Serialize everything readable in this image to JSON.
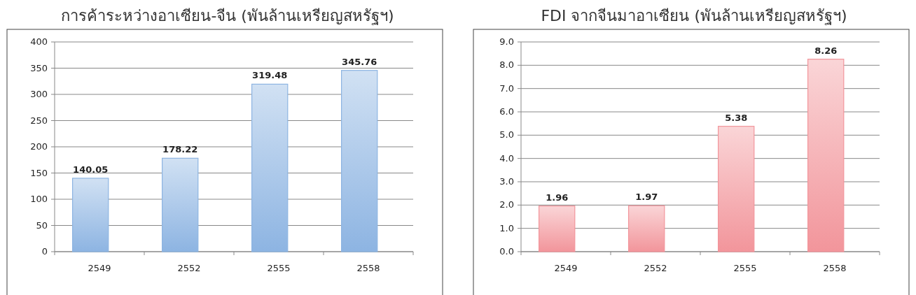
{
  "chart_data": [
    {
      "type": "bar",
      "title": "การค้าระหว่างอาเซียน-จีน (พันล้านเหรียญสหรัฐฯ)",
      "categories": [
        "2549",
        "2552",
        "2555",
        "2558"
      ],
      "values": [
        140.05,
        178.22,
        319.48,
        345.76
      ],
      "color": "#8db4e2",
      "ylim": [
        0,
        400
      ],
      "yticks": [
        0,
        50,
        100,
        150,
        200,
        250,
        300,
        350,
        400
      ],
      "grid": "y",
      "data_labels": true
    },
    {
      "type": "bar",
      "title": "FDI จากจีนมาอาเซียน (พันล้านเหรียญสหรัฐฯ)",
      "categories": [
        "2549",
        "2552",
        "2555",
        "2558"
      ],
      "values": [
        1.96,
        1.97,
        5.38,
        8.26
      ],
      "color": "#f2959b",
      "ylim": [
        0,
        9
      ],
      "yticks": [
        {
          "value": 0,
          "label": "0.0"
        },
        {
          "value": 1,
          "label": "1.0"
        },
        {
          "value": 2,
          "label": "2.0"
        },
        {
          "value": 3,
          "label": "3.0"
        },
        {
          "value": 4,
          "label": "4.0"
        },
        {
          "value": 5,
          "label": "5.0"
        },
        {
          "value": 6,
          "label": "6.0"
        },
        {
          "value": 7,
          "label": "7.0"
        },
        {
          "value": 8,
          "label": "8.0"
        },
        {
          "value": 9,
          "label": "9.0"
        }
      ],
      "grid": "y",
      "data_labels": true
    }
  ]
}
